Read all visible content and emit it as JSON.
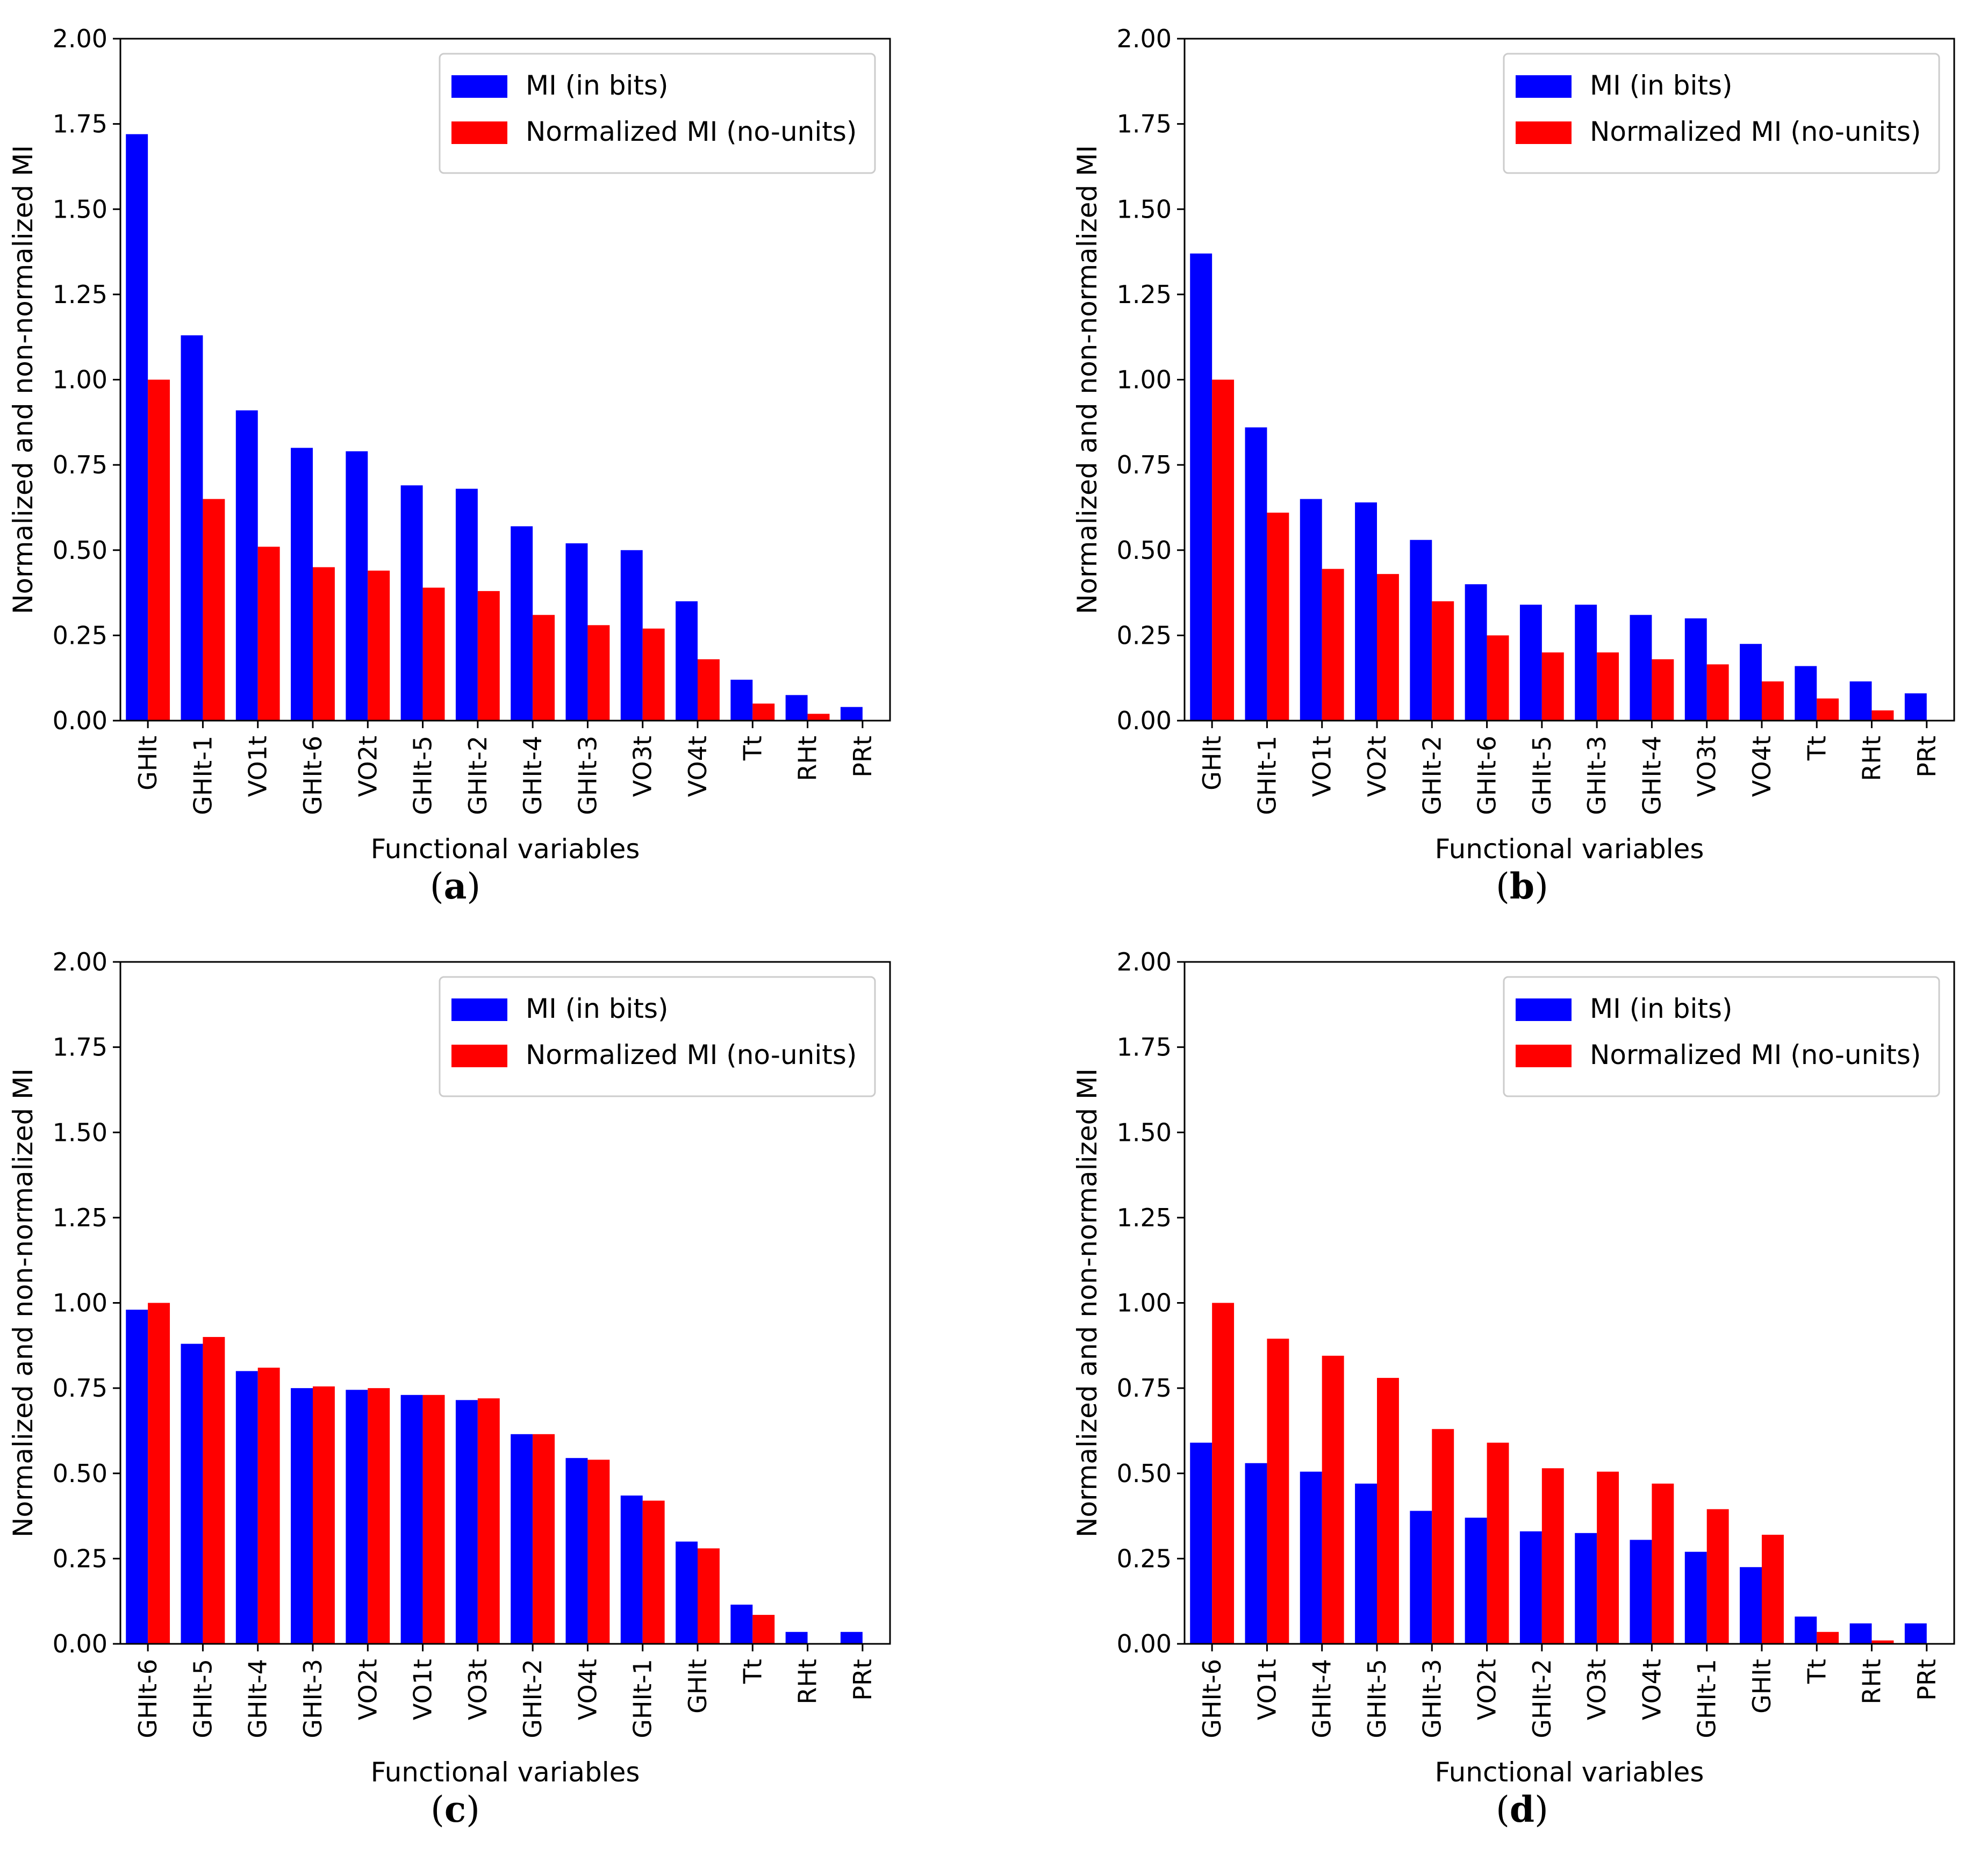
{
  "figure": {
    "panel_labels": [
      "a",
      "b",
      "c",
      "d"
    ]
  },
  "colors": {
    "mi": "#0000ff",
    "nmi": "#ff0000",
    "axis": "#000000",
    "legend_border": "#cccccc"
  },
  "chart_data": [
    {
      "type": "bar",
      "panel": "a",
      "categories": [
        "GHIt",
        "GHIt-1",
        "VO1t",
        "GHIt-6",
        "VO2t",
        "GHIt-5",
        "GHIt-2",
        "GHIt-4",
        "GHIt-3",
        "VO3t",
        "VO4t",
        "Tt",
        "RHt",
        "PRt"
      ],
      "series": [
        {
          "name": "MI (in bits)",
          "values": [
            1.72,
            1.13,
            0.91,
            0.8,
            0.79,
            0.69,
            0.68,
            0.57,
            0.52,
            0.5,
            0.35,
            0.12,
            0.075,
            0.04
          ]
        },
        {
          "name": "Normalized MI (no-units)",
          "values": [
            1.0,
            0.65,
            0.51,
            0.45,
            0.44,
            0.39,
            0.38,
            0.31,
            0.28,
            0.27,
            0.18,
            0.05,
            0.02,
            0.0
          ]
        }
      ],
      "xlabel": "Functional variables",
      "ylabel": "Normalized and non-normalized MI",
      "ylim": [
        0,
        2.0
      ],
      "yticks": [
        "0.00",
        "0.25",
        "0.50",
        "0.75",
        "1.00",
        "1.25",
        "1.50",
        "1.75",
        "2.00"
      ],
      "legend": "top-right",
      "grid": false
    },
    {
      "type": "bar",
      "panel": "b",
      "categories": [
        "GHIt",
        "GHIt-1",
        "VO1t",
        "VO2t",
        "GHIt-2",
        "GHIt-6",
        "GHIt-5",
        "GHIt-3",
        "GHIt-4",
        "VO3t",
        "VO4t",
        "Tt",
        "RHt",
        "PRt"
      ],
      "series": [
        {
          "name": "MI (in bits)",
          "values": [
            1.37,
            0.86,
            0.65,
            0.64,
            0.53,
            0.4,
            0.34,
            0.34,
            0.31,
            0.3,
            0.225,
            0.16,
            0.115,
            0.08
          ]
        },
        {
          "name": "Normalized MI (no-units)",
          "values": [
            1.0,
            0.61,
            0.445,
            0.43,
            0.35,
            0.25,
            0.2,
            0.2,
            0.18,
            0.165,
            0.115,
            0.065,
            0.03,
            0.0
          ]
        }
      ],
      "xlabel": "Functional variables",
      "ylabel": "Normalized and non-normalized MI",
      "ylim": [
        0,
        2.0
      ],
      "yticks": [
        "0.00",
        "0.25",
        "0.50",
        "0.75",
        "1.00",
        "1.25",
        "1.50",
        "1.75",
        "2.00"
      ],
      "legend": "top-right",
      "grid": false
    },
    {
      "type": "bar",
      "panel": "c",
      "categories": [
        "GHIt-6",
        "GHIt-5",
        "GHIt-4",
        "GHIt-3",
        "VO2t",
        "VO1t",
        "VO3t",
        "GHIt-2",
        "VO4t",
        "GHIt-1",
        "GHIt",
        "Tt",
        "RHt",
        "PRt"
      ],
      "series": [
        {
          "name": "MI (in bits)",
          "values": [
            0.98,
            0.88,
            0.8,
            0.75,
            0.745,
            0.73,
            0.715,
            0.615,
            0.545,
            0.435,
            0.3,
            0.115,
            0.035,
            0.035
          ]
        },
        {
          "name": "Normalized MI (no-units)",
          "values": [
            1.0,
            0.9,
            0.81,
            0.755,
            0.75,
            0.73,
            0.72,
            0.615,
            0.54,
            0.42,
            0.28,
            0.085,
            0.0,
            0.0
          ]
        }
      ],
      "xlabel": "Functional variables",
      "ylabel": "Normalized and non-normalized MI",
      "ylim": [
        0,
        2.0
      ],
      "yticks": [
        "0.00",
        "0.25",
        "0.50",
        "0.75",
        "1.00",
        "1.25",
        "1.50",
        "1.75",
        "2.00"
      ],
      "legend": "top-right",
      "grid": false
    },
    {
      "type": "bar",
      "panel": "d",
      "categories": [
        "GHIt-6",
        "VO1t",
        "GHIt-4",
        "GHIt-5",
        "GHIt-3",
        "VO2t",
        "GHIt-2",
        "VO3t",
        "VO4t",
        "GHIt-1",
        "GHIt",
        "Tt",
        "RHt",
        "PRt"
      ],
      "series": [
        {
          "name": "MI (in bits)",
          "values": [
            0.59,
            0.53,
            0.505,
            0.47,
            0.39,
            0.37,
            0.33,
            0.325,
            0.305,
            0.27,
            0.225,
            0.08,
            0.06,
            0.06
          ]
        },
        {
          "name": "Normalized MI (no-units)",
          "values": [
            1.0,
            0.895,
            0.845,
            0.78,
            0.63,
            0.59,
            0.515,
            0.505,
            0.47,
            0.395,
            0.32,
            0.035,
            0.01,
            0.0
          ]
        }
      ],
      "xlabel": "Functional variables",
      "ylabel": "Normalized and non-normalized MI",
      "ylim": [
        0,
        2.0
      ],
      "yticks": [
        "0.00",
        "0.25",
        "0.50",
        "0.75",
        "1.00",
        "1.25",
        "1.50",
        "1.75",
        "2.00"
      ],
      "legend": "top-right",
      "grid": false
    }
  ]
}
